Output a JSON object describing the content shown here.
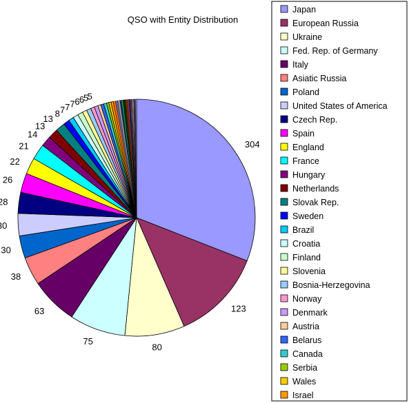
{
  "chart_data": {
    "type": "pie",
    "title": "QSO with Entity Distribution",
    "categories": [
      "Japan",
      "European Russia",
      "Ukraine",
      "Fed. Rep. of Germany",
      "Italy",
      "Asiatic Russia",
      "Poland",
      "United States of America",
      "Czech Rep.",
      "Spain",
      "England",
      "France",
      "Hungary",
      "Netherlands",
      "Slovak Rep.",
      "Sweden",
      "Brazil",
      "Croatia",
      "Finland",
      "Slovenia",
      "Bosnia-Herzegovina",
      "Norway",
      "Denmark",
      "Austria",
      "Belarus",
      "Canada",
      "Serbia",
      "Wales",
      "Israel"
    ],
    "values": [
      304,
      123,
      80,
      75,
      63,
      38,
      30,
      30,
      28,
      26,
      22,
      21,
      14,
      13,
      13,
      8,
      7,
      7,
      7,
      6,
      6,
      5,
      5,
      4,
      4,
      4,
      3,
      3,
      3
    ],
    "data_labels": [
      "304",
      "123",
      "80",
      "75",
      "63",
      "38",
      "30",
      "30",
      "28",
      "26",
      "22",
      "21",
      "14",
      "13",
      "13",
      "8",
      "7",
      "7",
      "7",
      "6",
      "6",
      "5",
      "5",
      "",
      "",
      "",
      "",
      "",
      ""
    ],
    "extra_slices": [
      3,
      3,
      3,
      2,
      2,
      2,
      2,
      2,
      2,
      1,
      1,
      1,
      1,
      1,
      1,
      1,
      1,
      1,
      1
    ],
    "colors": [
      "#9999ff",
      "#993366",
      "#ffffcc",
      "#ccffff",
      "#660066",
      "#ff8080",
      "#0066cc",
      "#ccccff",
      "#000080",
      "#ff00ff",
      "#ffff00",
      "#00ffff",
      "#800080",
      "#800000",
      "#008080",
      "#0000ff",
      "#00ccff",
      "#ccffff",
      "#ccffcc",
      "#ffff99",
      "#99ccff",
      "#ff99cc",
      "#cc99ff",
      "#ffcc99",
      "#3366ff",
      "#33cccc",
      "#99cc00",
      "#ffcc00",
      "#ff9900"
    ],
    "extra_colors": [
      "#ff6600",
      "#666699",
      "#969696",
      "#003366",
      "#339966",
      "#003300",
      "#333300",
      "#993300",
      "#993366",
      "#333399",
      "#333333",
      "#9999ff",
      "#993366",
      "#ffffcc",
      "#ccffff",
      "#660066",
      "#ff8080",
      "#0066cc",
      "#ccccff"
    ],
    "legend_position": "right",
    "slice_outline_color": "#000000"
  }
}
